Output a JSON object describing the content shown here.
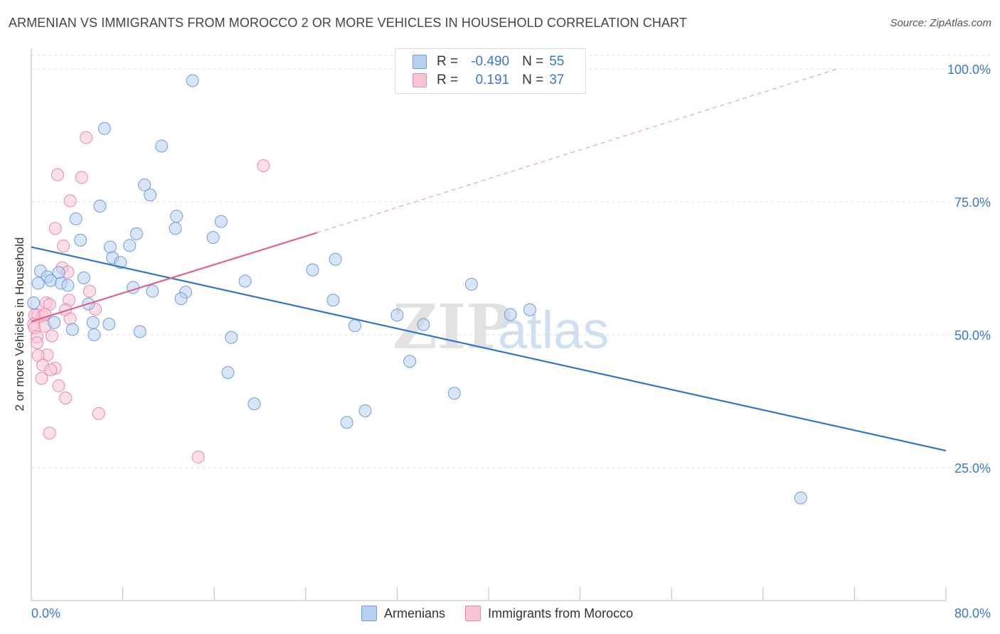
{
  "title": "ARMENIAN VS IMMIGRANTS FROM MOROCCO 2 OR MORE VEHICLES IN HOUSEHOLD CORRELATION CHART",
  "source": "Source: ZipAtlas.com",
  "watermark": {
    "zip": "ZIP",
    "atlas": "atlas"
  },
  "legend": {
    "rows": [
      {
        "r_label": "R =",
        "r_value": "-0.490",
        "n_label": "N =",
        "n_value": "55"
      },
      {
        "r_label": "R =",
        "r_value": "0.191",
        "n_label": "N =",
        "n_value": "37"
      }
    ]
  },
  "bottom_legend": {
    "armenians": "Armenians",
    "morocco": "Immigrants from Morocco"
  },
  "colors": {
    "blue_fill": "#b8d0f0",
    "blue_stroke": "#6f9ddb",
    "blue_line": "#2f74cf",
    "pink_fill": "#f7c4d4",
    "pink_stroke": "#e88aa8",
    "pink_line": "#e0628a",
    "tick_text": "#3a77d0",
    "grid": "#dddddd"
  },
  "chart_data": {
    "type": "scatter",
    "title": "ARMENIAN VS IMMIGRANTS FROM MOROCCO 2 OR MORE VEHICLES IN HOUSEHOLD CORRELATION CHART",
    "xlabel": "",
    "ylabel": "2 or more Vehicles in Household",
    "xlim": [
      0,
      80
    ],
    "ylim": [
      0,
      102
    ],
    "x_tick_labels": [
      "0.0%",
      "80.0%"
    ],
    "y_ticks": [
      25,
      50,
      75,
      100
    ],
    "y_tick_labels": [
      "25.0%",
      "50.0%",
      "75.0%",
      "100.0%"
    ],
    "grid": true,
    "series": [
      {
        "name": "Armenians",
        "R": -0.49,
        "N": 55,
        "trend": {
          "x": [
            0,
            80
          ],
          "y": [
            66.5,
            28.2
          ]
        },
        "points": [
          [
            14.1,
            97.8
          ],
          [
            6.4,
            88.8
          ],
          [
            11.4,
            85.5
          ],
          [
            9.9,
            78.2
          ],
          [
            10.4,
            76.3
          ],
          [
            6.0,
            74.2
          ],
          [
            3.9,
            71.8
          ],
          [
            12.7,
            72.3
          ],
          [
            16.6,
            71.3
          ],
          [
            12.6,
            70.0
          ],
          [
            9.2,
            69.0
          ],
          [
            4.3,
            67.8
          ],
          [
            15.9,
            68.3
          ],
          [
            6.9,
            66.5
          ],
          [
            8.6,
            66.8
          ],
          [
            7.1,
            64.5
          ],
          [
            7.8,
            63.6
          ],
          [
            26.6,
            64.2
          ],
          [
            24.6,
            62.2
          ],
          [
            0.8,
            62.0
          ],
          [
            2.4,
            61.7
          ],
          [
            1.4,
            60.9
          ],
          [
            1.7,
            60.2
          ],
          [
            2.6,
            59.7
          ],
          [
            4.6,
            60.7
          ],
          [
            0.6,
            59.7
          ],
          [
            3.2,
            59.3
          ],
          [
            18.7,
            60.1
          ],
          [
            38.5,
            59.5
          ],
          [
            8.9,
            58.9
          ],
          [
            10.6,
            58.2
          ],
          [
            13.5,
            58.0
          ],
          [
            13.1,
            56.8
          ],
          [
            5.0,
            55.8
          ],
          [
            26.4,
            56.5
          ],
          [
            0.2,
            56.0
          ],
          [
            32.0,
            53.7
          ],
          [
            43.6,
            54.7
          ],
          [
            41.9,
            53.8
          ],
          [
            2.0,
            52.3
          ],
          [
            5.4,
            52.3
          ],
          [
            6.8,
            52.0
          ],
          [
            28.3,
            51.7
          ],
          [
            34.3,
            51.9
          ],
          [
            3.6,
            51.0
          ],
          [
            5.5,
            50.0
          ],
          [
            9.5,
            50.6
          ],
          [
            17.5,
            49.5
          ],
          [
            33.1,
            45.0
          ],
          [
            17.2,
            42.9
          ],
          [
            37.0,
            39.0
          ],
          [
            19.5,
            37.0
          ],
          [
            29.2,
            35.7
          ],
          [
            27.6,
            33.5
          ],
          [
            67.3,
            19.3
          ]
        ]
      },
      {
        "name": "Immigrants from Morocco",
        "R": 0.191,
        "N": 37,
        "trend": {
          "x": [
            0,
            25
          ],
          "y": [
            52.5,
            69.2
          ]
        },
        "trend_extended": {
          "x": [
            25,
            70.5
          ],
          "y": [
            69.2,
            100.0
          ]
        },
        "points": [
          [
            4.8,
            87.1
          ],
          [
            20.3,
            81.8
          ],
          [
            2.3,
            80.1
          ],
          [
            4.4,
            79.6
          ],
          [
            3.4,
            75.2
          ],
          [
            2.1,
            70.0
          ],
          [
            2.8,
            66.7
          ],
          [
            2.7,
            62.6
          ],
          [
            3.2,
            61.8
          ],
          [
            5.1,
            58.2
          ],
          [
            3.3,
            56.5
          ],
          [
            1.3,
            56.0
          ],
          [
            1.6,
            55.7
          ],
          [
            5.6,
            54.8
          ],
          [
            3.0,
            54.7
          ],
          [
            0.6,
            53.8
          ],
          [
            1.0,
            53.5
          ],
          [
            0.3,
            53.7
          ],
          [
            1.2,
            53.9
          ],
          [
            3.4,
            53.0
          ],
          [
            0.2,
            52.0
          ],
          [
            0.3,
            51.3
          ],
          [
            1.2,
            51.6
          ],
          [
            0.5,
            49.6
          ],
          [
            1.8,
            49.8
          ],
          [
            0.5,
            48.5
          ],
          [
            1.4,
            46.2
          ],
          [
            0.6,
            46.1
          ],
          [
            2.1,
            43.7
          ],
          [
            1.0,
            44.3
          ],
          [
            1.7,
            43.4
          ],
          [
            0.9,
            41.8
          ],
          [
            2.4,
            40.4
          ],
          [
            3.0,
            38.1
          ],
          [
            5.9,
            35.2
          ],
          [
            1.6,
            31.5
          ],
          [
            14.6,
            27.0
          ]
        ]
      }
    ]
  }
}
